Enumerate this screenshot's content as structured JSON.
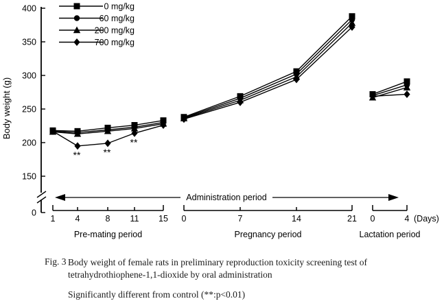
{
  "caption": {
    "fig_label": "Fig. 3",
    "line1": "Body weight of female rats in preliminary reproduction toxicity screening test of",
    "line2": "tetrahydrothiophene-1,1-dioxide by oral administration",
    "note": "Significantly different from control (**:p<0.01)"
  },
  "chart_data": {
    "type": "line",
    "title": "",
    "ylabel": "Body weight (g)",
    "ylim": [
      150,
      400
    ],
    "yticks": [
      400,
      350,
      300,
      250,
      200,
      150
    ],
    "y_axis_break_to_zero": true,
    "y_origin_label": "0",
    "x_unit_label": "(Days)",
    "annotation_arrow_label": "Administration period",
    "legend_position": "top-left",
    "grid": false,
    "colors": {
      "line": "#000000",
      "background": "#ffffff"
    },
    "segments": [
      {
        "label": "Pre-mating period",
        "days": [
          1,
          4,
          8,
          11,
          15
        ]
      },
      {
        "label": "Pregnancy period",
        "days": [
          0,
          7,
          14,
          21
        ]
      },
      {
        "label": "Lactation period",
        "days": [
          0,
          4
        ]
      }
    ],
    "series": [
      {
        "name": "0 mg/kg",
        "marker": "square",
        "values": [
          [
            218,
            217,
            222,
            226,
            233
          ],
          [
            238,
            269,
            306,
            388
          ],
          [
            272,
            291
          ]
        ]
      },
      {
        "name": "60 mg/kg",
        "marker": "circle",
        "values": [
          [
            217,
            215,
            219,
            223,
            230
          ],
          [
            237,
            266,
            302,
            383
          ],
          [
            270,
            286
          ]
        ]
      },
      {
        "name": "200 mg/kg",
        "marker": "triangle",
        "values": [
          [
            216,
            213,
            217,
            221,
            228
          ],
          [
            236,
            263,
            298,
            378
          ],
          [
            267,
            282
          ]
        ]
      },
      {
        "name": "700 mg/kg",
        "marker": "diamond",
        "values": [
          [
            217,
            195,
            199,
            214,
            226
          ],
          [
            235,
            260,
            294,
            372
          ],
          [
            269,
            272
          ]
        ]
      }
    ],
    "significance": [
      {
        "segment": 0,
        "day_index": 1,
        "series": "700 mg/kg",
        "label": "**"
      },
      {
        "segment": 0,
        "day_index": 2,
        "series": "700 mg/kg",
        "label": "**"
      },
      {
        "segment": 0,
        "day_index": 3,
        "series": "700 mg/kg",
        "label": "**"
      }
    ]
  }
}
